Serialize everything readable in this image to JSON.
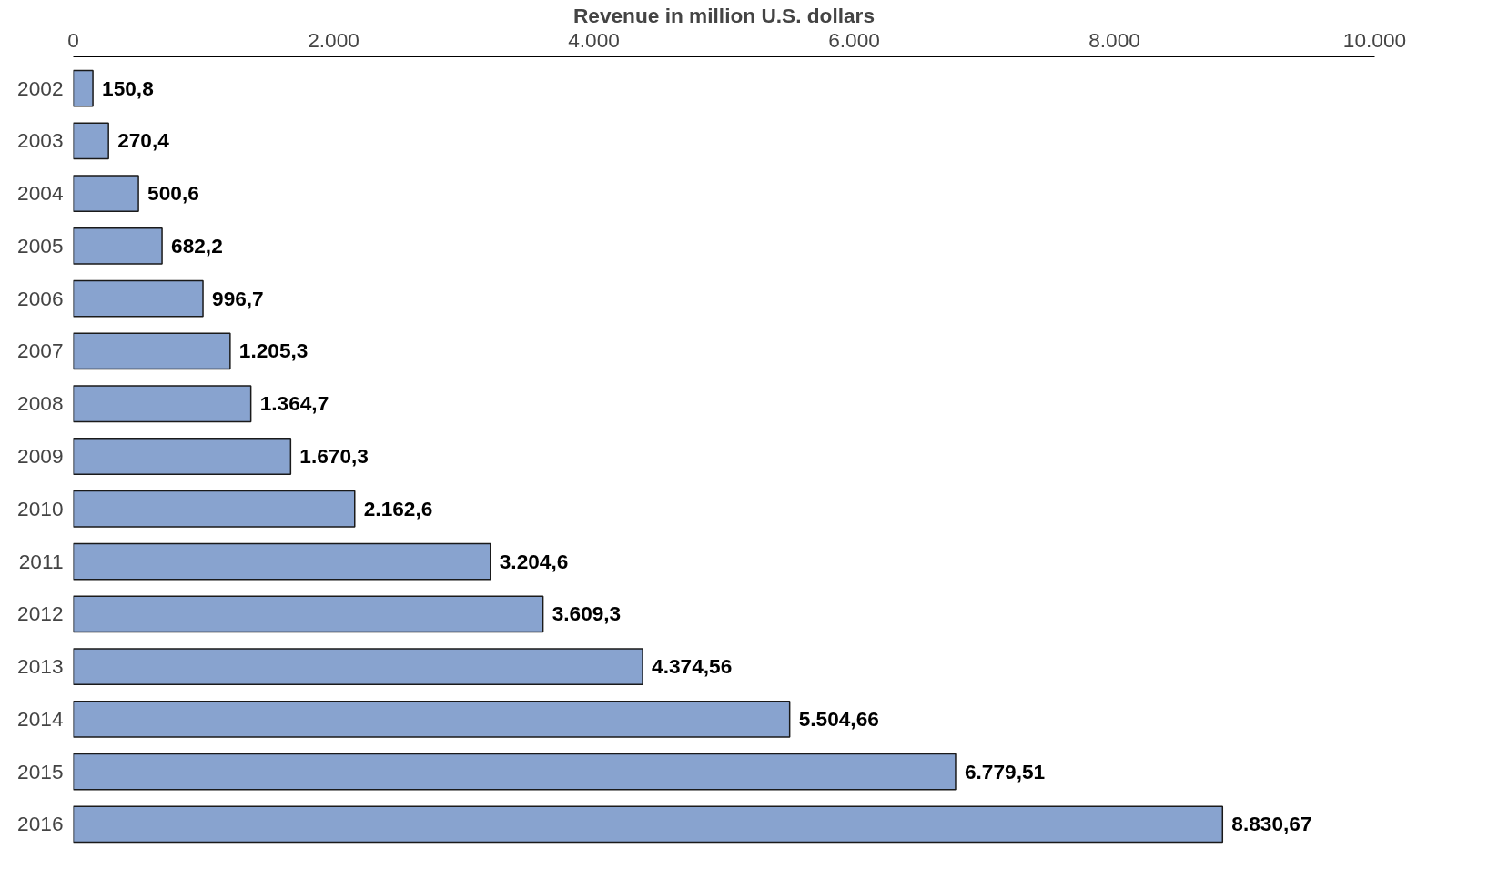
{
  "chart_data": {
    "type": "bar",
    "orientation": "horizontal",
    "xlabel": "Revenue in million U.S. dollars",
    "categories": [
      "2002",
      "2003",
      "2004",
      "2005",
      "2006",
      "2007",
      "2008",
      "2009",
      "2010",
      "2011",
      "2012",
      "2013",
      "2014",
      "2015",
      "2016"
    ],
    "values": [
      150.8,
      270.4,
      500.6,
      682.2,
      996.7,
      1205.3,
      1364.7,
      1670.3,
      2162.6,
      3204.6,
      3609.3,
      4374.56,
      5504.66,
      6779.51,
      8830.67
    ],
    "value_labels": [
      "150,8",
      "270,4",
      "500,6",
      "682,2",
      "996,7",
      "1.205,3",
      "1.364,7",
      "1.670,3",
      "2.162,6",
      "3.204,6",
      "3.609,3",
      "4.374,56",
      "5.504,66",
      "6.779,51",
      "8.830,67"
    ],
    "color": "#88a3cf",
    "xlim": [
      0,
      10000
    ],
    "xticks": [
      0,
      {
        "value": 2000,
        "label": "2.000"
      },
      {
        "value": 4000,
        "label": "4.000"
      },
      {
        "value": 6000,
        "label": "6.000"
      },
      {
        "value": 8000,
        "label": "8.000"
      },
      {
        "value": 10000,
        "label": "10.000"
      }
    ],
    "grid": false
  }
}
